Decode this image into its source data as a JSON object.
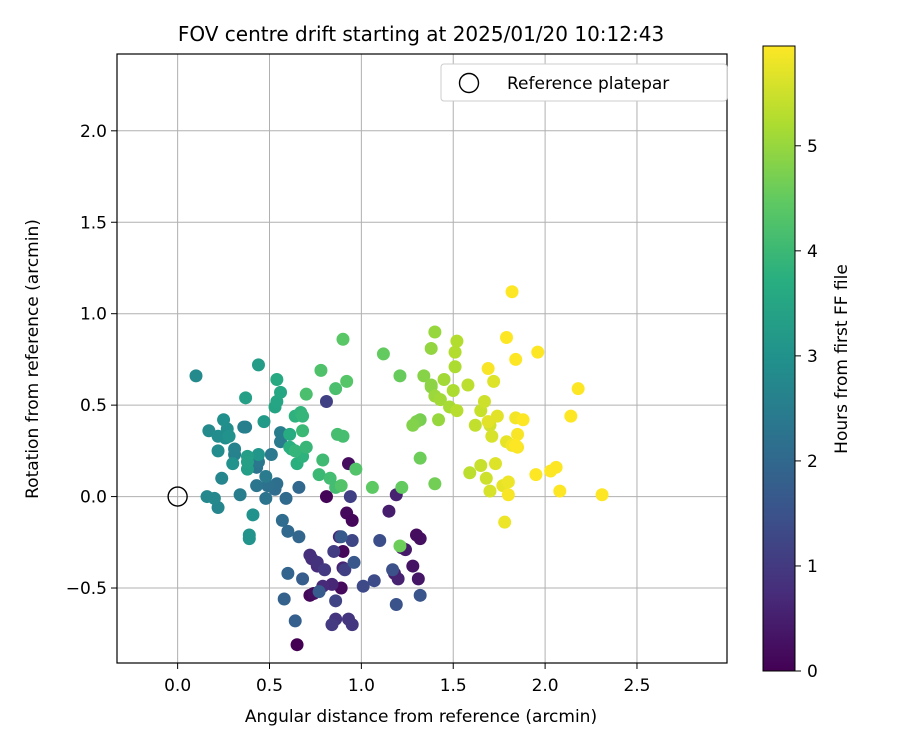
{
  "chart_data": {
    "type": "scatter",
    "title": "FOV centre drift starting at 2025/01/20 10:12:43",
    "xlabel": "Angular distance from reference (arcmin)",
    "ylabel": "Rotation from reference (arcmin)",
    "xlim": [
      -0.33,
      2.99
    ],
    "ylim": [
      -0.91,
      2.42
    ],
    "xticks": [
      0.0,
      0.5,
      1.0,
      1.5,
      2.0,
      2.5
    ],
    "xtick_labels": [
      "0.0",
      "0.5",
      "1.0",
      "1.5",
      "2.0",
      "2.5"
    ],
    "yticks": [
      -0.5,
      0.0,
      0.5,
      1.0,
      1.5,
      2.0
    ],
    "ytick_labels": [
      "−0.5",
      "0.0",
      "0.5",
      "1.0",
      "1.5",
      "2.0"
    ],
    "grid": true,
    "legend": {
      "position": "top-right",
      "entries": [
        {
          "label": "Reference platepar",
          "marker": "open-circle",
          "color": "#000000"
        }
      ]
    },
    "reference_point": {
      "x": 0.0,
      "y": 0.0
    },
    "colorbar": {
      "label": "Hours from first FF file",
      "min": 0,
      "max": 5.95,
      "ticks": [
        0,
        1,
        2,
        3,
        4,
        5
      ],
      "tick_labels": [
        "0",
        "1",
        "2",
        "3",
        "4",
        "5"
      ],
      "colormap": "viridis"
    },
    "points_xyh": [
      [
        0.65,
        -0.81,
        0.0
      ],
      [
        0.72,
        -0.54,
        0.1
      ],
      [
        0.81,
        0.0,
        0.05
      ],
      [
        0.9,
        -0.3,
        0.1
      ],
      [
        0.92,
        -0.09,
        0.15
      ],
      [
        0.95,
        -0.13,
        0.1
      ],
      [
        0.93,
        0.18,
        0.2
      ],
      [
        0.89,
        -0.5,
        0.15
      ],
      [
        0.74,
        -0.53,
        0.2
      ],
      [
        1.32,
        -0.23,
        0.25
      ],
      [
        1.3,
        -0.21,
        0.2
      ],
      [
        1.28,
        -0.38,
        0.3
      ],
      [
        1.31,
        -0.45,
        0.35
      ],
      [
        1.24,
        -0.29,
        0.4
      ],
      [
        1.22,
        -0.28,
        0.4
      ],
      [
        1.18,
        -0.42,
        0.5
      ],
      [
        1.2,
        -0.45,
        0.55
      ],
      [
        1.15,
        -0.08,
        0.45
      ],
      [
        1.19,
        0.01,
        0.55
      ],
      [
        0.9,
        -0.39,
        0.6
      ],
      [
        0.88,
        -0.22,
        0.65
      ],
      [
        0.84,
        -0.48,
        0.65
      ],
      [
        0.79,
        -0.49,
        0.7
      ],
      [
        0.76,
        -0.38,
        0.75
      ],
      [
        0.72,
        -0.32,
        0.8
      ],
      [
        0.73,
        -0.34,
        0.8
      ],
      [
        0.76,
        -0.36,
        0.85
      ],
      [
        0.86,
        -0.67,
        0.9
      ],
      [
        0.93,
        -0.67,
        0.9
      ],
      [
        0.95,
        -0.7,
        0.95
      ],
      [
        0.84,
        -0.7,
        1.0
      ],
      [
        0.8,
        -0.4,
        1.0
      ],
      [
        0.85,
        -0.3,
        1.05
      ],
      [
        0.91,
        -0.4,
        1.1
      ],
      [
        0.94,
        0.0,
        1.1
      ],
      [
        0.81,
        0.52,
        1.15
      ],
      [
        0.86,
        -0.57,
        1.2
      ],
      [
        0.95,
        -0.24,
        1.25
      ],
      [
        1.01,
        -0.49,
        1.3
      ],
      [
        1.07,
        -0.46,
        1.35
      ],
      [
        1.1,
        -0.24,
        1.4
      ],
      [
        1.17,
        -0.4,
        1.45
      ],
      [
        1.19,
        -0.59,
        1.5
      ],
      [
        1.32,
        -0.54,
        1.55
      ],
      [
        0.96,
        -0.36,
        1.6
      ],
      [
        0.89,
        -0.22,
        1.65
      ],
      [
        0.77,
        -0.52,
        1.7
      ],
      [
        0.68,
        -0.45,
        1.75
      ],
      [
        0.64,
        -0.68,
        1.8
      ],
      [
        0.58,
        -0.56,
        1.85
      ],
      [
        0.6,
        -0.42,
        1.9
      ],
      [
        0.66,
        -0.22,
        1.95
      ],
      [
        0.66,
        0.05,
        2.0
      ],
      [
        0.6,
        -0.19,
        2.0
      ],
      [
        0.59,
        -0.01,
        2.05
      ],
      [
        0.57,
        -0.13,
        2.1
      ],
      [
        0.53,
        0.04,
        2.1
      ],
      [
        0.54,
        0.07,
        2.15
      ],
      [
        0.49,
        0.06,
        2.2
      ],
      [
        0.48,
        -0.01,
        2.25
      ],
      [
        0.43,
        0.16,
        2.3
      ],
      [
        0.43,
        0.06,
        2.3
      ],
      [
        0.44,
        0.19,
        2.35
      ],
      [
        0.51,
        0.23,
        2.4
      ],
      [
        0.48,
        0.11,
        2.45
      ],
      [
        0.56,
        0.3,
        2.45
      ],
      [
        0.56,
        0.35,
        2.5
      ],
      [
        0.34,
        0.01,
        2.5
      ],
      [
        0.37,
        0.38,
        2.55
      ],
      [
        0.36,
        0.38,
        2.55
      ],
      [
        0.31,
        0.23,
        2.6
      ],
      [
        0.31,
        0.26,
        2.65
      ],
      [
        0.24,
        0.1,
        2.7
      ],
      [
        0.22,
        -0.06,
        2.7
      ],
      [
        0.2,
        -0.01,
        2.75
      ],
      [
        0.16,
        0.0,
        2.75
      ],
      [
        0.17,
        0.36,
        2.8
      ],
      [
        0.1,
        0.66,
        2.8
      ],
      [
        0.22,
        0.25,
        2.85
      ],
      [
        0.22,
        0.33,
        2.85
      ],
      [
        0.26,
        0.32,
        2.9
      ],
      [
        0.27,
        0.37,
        2.9
      ],
      [
        0.25,
        0.42,
        2.95
      ],
      [
        0.3,
        0.18,
        3.0
      ],
      [
        0.28,
        0.33,
        3.0
      ],
      [
        0.41,
        -0.1,
        3.0
      ],
      [
        0.39,
        -0.21,
        3.05
      ],
      [
        0.39,
        -0.23,
        3.05
      ],
      [
        0.44,
        0.23,
        3.1
      ],
      [
        0.47,
        0.41,
        3.2
      ],
      [
        0.44,
        0.72,
        3.25
      ],
      [
        0.38,
        0.22,
        3.3
      ],
      [
        0.38,
        0.15,
        3.3
      ],
      [
        0.38,
        0.19,
        3.35
      ],
      [
        0.37,
        0.54,
        3.35
      ],
      [
        0.53,
        0.49,
        3.45
      ],
      [
        0.54,
        0.52,
        3.5
      ],
      [
        0.56,
        0.57,
        3.55
      ],
      [
        0.54,
        0.64,
        3.6
      ],
      [
        0.61,
        0.34,
        3.65
      ],
      [
        0.62,
        0.26,
        3.7
      ],
      [
        0.61,
        0.27,
        3.75
      ],
      [
        0.65,
        0.18,
        3.75
      ],
      [
        0.68,
        0.22,
        3.8
      ],
      [
        0.64,
        0.44,
        3.8
      ],
      [
        0.67,
        0.46,
        3.85
      ],
      [
        0.64,
        0.25,
        3.9
      ],
      [
        0.68,
        0.44,
        3.9
      ],
      [
        0.7,
        0.27,
        3.95
      ],
      [
        0.68,
        0.36,
        4.0
      ],
      [
        0.77,
        0.12,
        4.0
      ],
      [
        0.79,
        0.2,
        4.05
      ],
      [
        0.83,
        0.1,
        4.1
      ],
      [
        0.86,
        0.05,
        4.1
      ],
      [
        0.87,
        0.34,
        4.15
      ],
      [
        0.9,
        0.33,
        4.15
      ],
      [
        0.86,
        0.59,
        4.2
      ],
      [
        0.7,
        0.56,
        4.2
      ],
      [
        0.78,
        0.69,
        4.25
      ],
      [
        0.89,
        0.06,
        4.3
      ],
      [
        0.97,
        0.15,
        4.3
      ],
      [
        0.92,
        0.63,
        4.35
      ],
      [
        0.9,
        0.86,
        4.4
      ],
      [
        1.06,
        0.05,
        4.45
      ],
      [
        1.22,
        0.05,
        4.5
      ],
      [
        1.12,
        0.78,
        4.5
      ],
      [
        1.21,
        0.66,
        4.55
      ],
      [
        1.21,
        -0.27,
        4.6
      ],
      [
        1.32,
        0.21,
        4.6
      ],
      [
        1.4,
        0.07,
        4.65
      ],
      [
        1.32,
        0.42,
        4.7
      ],
      [
        1.3,
        0.41,
        4.75
      ],
      [
        1.28,
        0.39,
        4.8
      ],
      [
        1.34,
        0.66,
        4.85
      ],
      [
        1.38,
        0.6,
        4.9
      ],
      [
        1.38,
        0.61,
        4.9
      ],
      [
        1.38,
        0.81,
        4.95
      ],
      [
        1.4,
        0.9,
        5.0
      ],
      [
        1.42,
        0.42,
        5.0
      ],
      [
        1.4,
        0.55,
        5.05
      ],
      [
        1.43,
        0.53,
        5.1
      ],
      [
        1.45,
        0.64,
        5.1
      ],
      [
        1.48,
        0.49,
        5.15
      ],
      [
        1.5,
        0.58,
        5.2
      ],
      [
        1.51,
        0.71,
        5.2
      ],
      [
        1.51,
        0.79,
        5.25
      ],
      [
        1.52,
        0.85,
        5.25
      ],
      [
        1.52,
        0.47,
        5.3
      ],
      [
        1.58,
        0.61,
        5.35
      ],
      [
        1.59,
        0.13,
        5.35
      ],
      [
        1.62,
        0.39,
        5.4
      ],
      [
        1.65,
        0.47,
        5.45
      ],
      [
        1.65,
        0.17,
        5.45
      ],
      [
        1.67,
        0.52,
        5.5
      ],
      [
        1.68,
        0.1,
        5.5
      ],
      [
        1.7,
        0.39,
        5.55
      ],
      [
        1.71,
        0.33,
        5.6
      ],
      [
        1.7,
        0.03,
        5.6
      ],
      [
        1.73,
        0.18,
        5.65
      ],
      [
        1.72,
        0.63,
        5.65
      ],
      [
        1.69,
        0.41,
        5.7
      ],
      [
        1.74,
        0.44,
        5.7
      ],
      [
        1.77,
        0.06,
        5.75
      ],
      [
        1.79,
        0.3,
        5.75
      ],
      [
        1.78,
        -0.14,
        5.8
      ],
      [
        1.8,
        0.08,
        5.8
      ],
      [
        1.82,
        0.28,
        5.85
      ],
      [
        1.84,
        0.43,
        5.85
      ],
      [
        1.85,
        0.34,
        5.9
      ],
      [
        1.85,
        0.27,
        5.9
      ],
      [
        1.84,
        0.75,
        5.95
      ],
      [
        1.79,
        0.87,
        5.95
      ],
      [
        1.82,
        1.12,
        5.95
      ],
      [
        1.88,
        0.42,
        5.95
      ],
      [
        1.84,
        0.28,
        5.95
      ],
      [
        1.96,
        0.79,
        5.95
      ],
      [
        1.95,
        0.12,
        5.95
      ],
      [
        2.03,
        0.14,
        5.95
      ],
      [
        2.06,
        0.16,
        5.95
      ],
      [
        2.08,
        0.03,
        5.95
      ],
      [
        2.14,
        0.44,
        5.95
      ],
      [
        2.18,
        0.59,
        5.95
      ],
      [
        2.31,
        0.01,
        5.95
      ],
      [
        1.69,
        0.7,
        5.9
      ],
      [
        1.8,
        0.01,
        5.9
      ]
    ]
  }
}
